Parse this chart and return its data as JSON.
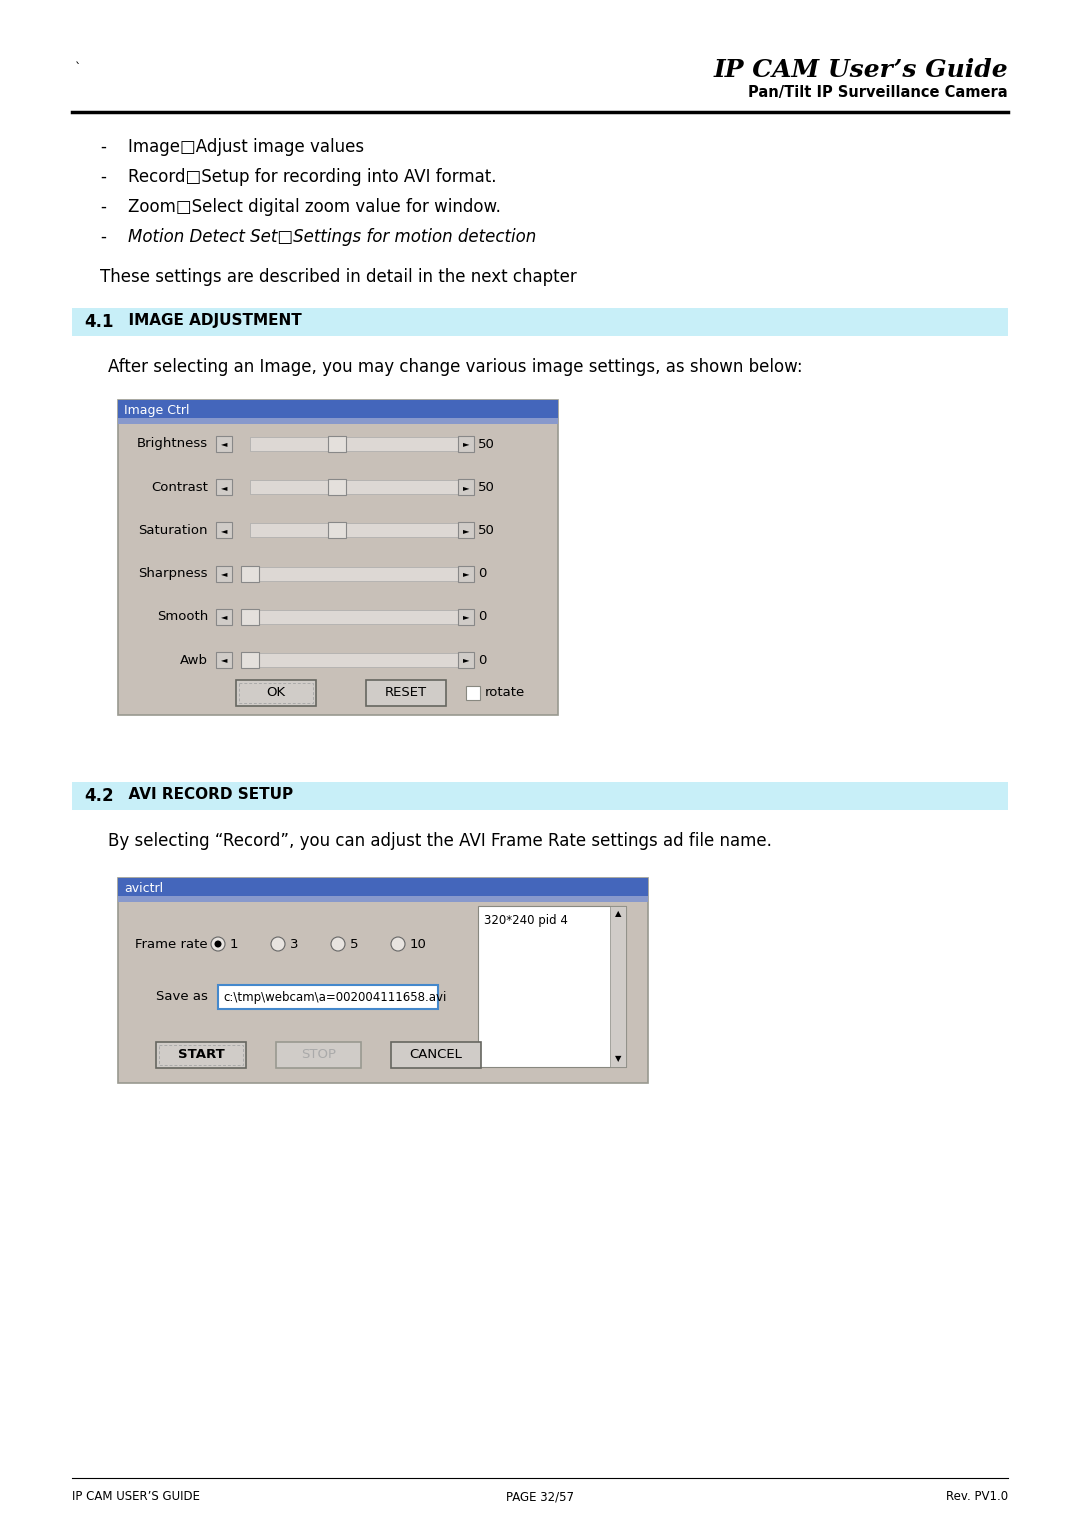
{
  "bg_color": "#ffffff",
  "title_italic": "IP CAM User’s Guide",
  "title_bold": "Pan/Tilt IP Surveillance Camera",
  "backtick": "`",
  "bullet_items": [
    "Image□Adjust image values",
    "Record□Setup for recording into AVI format.",
    "Zoom□Select digital zoom value for window.",
    "Motion Detect Set□Settings for motion detection"
  ],
  "these_settings": "These settings are described in detail in the next chapter",
  "section_41_label": "4.1",
  "section_41_title": "  IMAGE ADJUSTMENT",
  "section_41_bg": "#c8eff8",
  "section_41_desc": "After selecting an Image, you may change various image settings, as shown below:",
  "image_ctrl_title": "Image Ctrl",
  "image_ctrl_title_bg_top": "#4466bb",
  "image_ctrl_title_bg_bot": "#8899cc",
  "image_ctrl_bg": "#c8c0b8",
  "slider_labels": [
    "Brightness",
    "Contrast",
    "Saturation",
    "Sharpness",
    "Smooth",
    "Awb"
  ],
  "slider_values": [
    "50",
    "50",
    "50",
    "0",
    "0",
    "0"
  ],
  "ok_label": "OK",
  "reset_label": "RESET",
  "rotate_label": "rotate",
  "section_42_label": "4.2",
  "section_42_title": "  AVI RECORD SETUP",
  "section_42_bg": "#c8eff8",
  "section_42_desc": "By selecting “Record”, you can adjust the AVI Frame Rate settings ad file name.",
  "avictrl_title": "avictrl",
  "avictrl_bg": "#c8c0b8",
  "frame_rate_label": "Frame rate",
  "frame_rate_options": [
    "1",
    "3",
    "5",
    "10"
  ],
  "save_as_label": "Save as",
  "save_as_value": "c:\\tmp\\webcam\\a=002004111658.avi",
  "start_label": "START",
  "stop_label": "STOP",
  "cancel_label": "CANCEL",
  "resolution_text": "320*240 pid 4",
  "footer_left": "IP CAM USER’S GUIDE",
  "footer_center": "PAGE 32/57",
  "footer_right": "Rev. PV1.0"
}
